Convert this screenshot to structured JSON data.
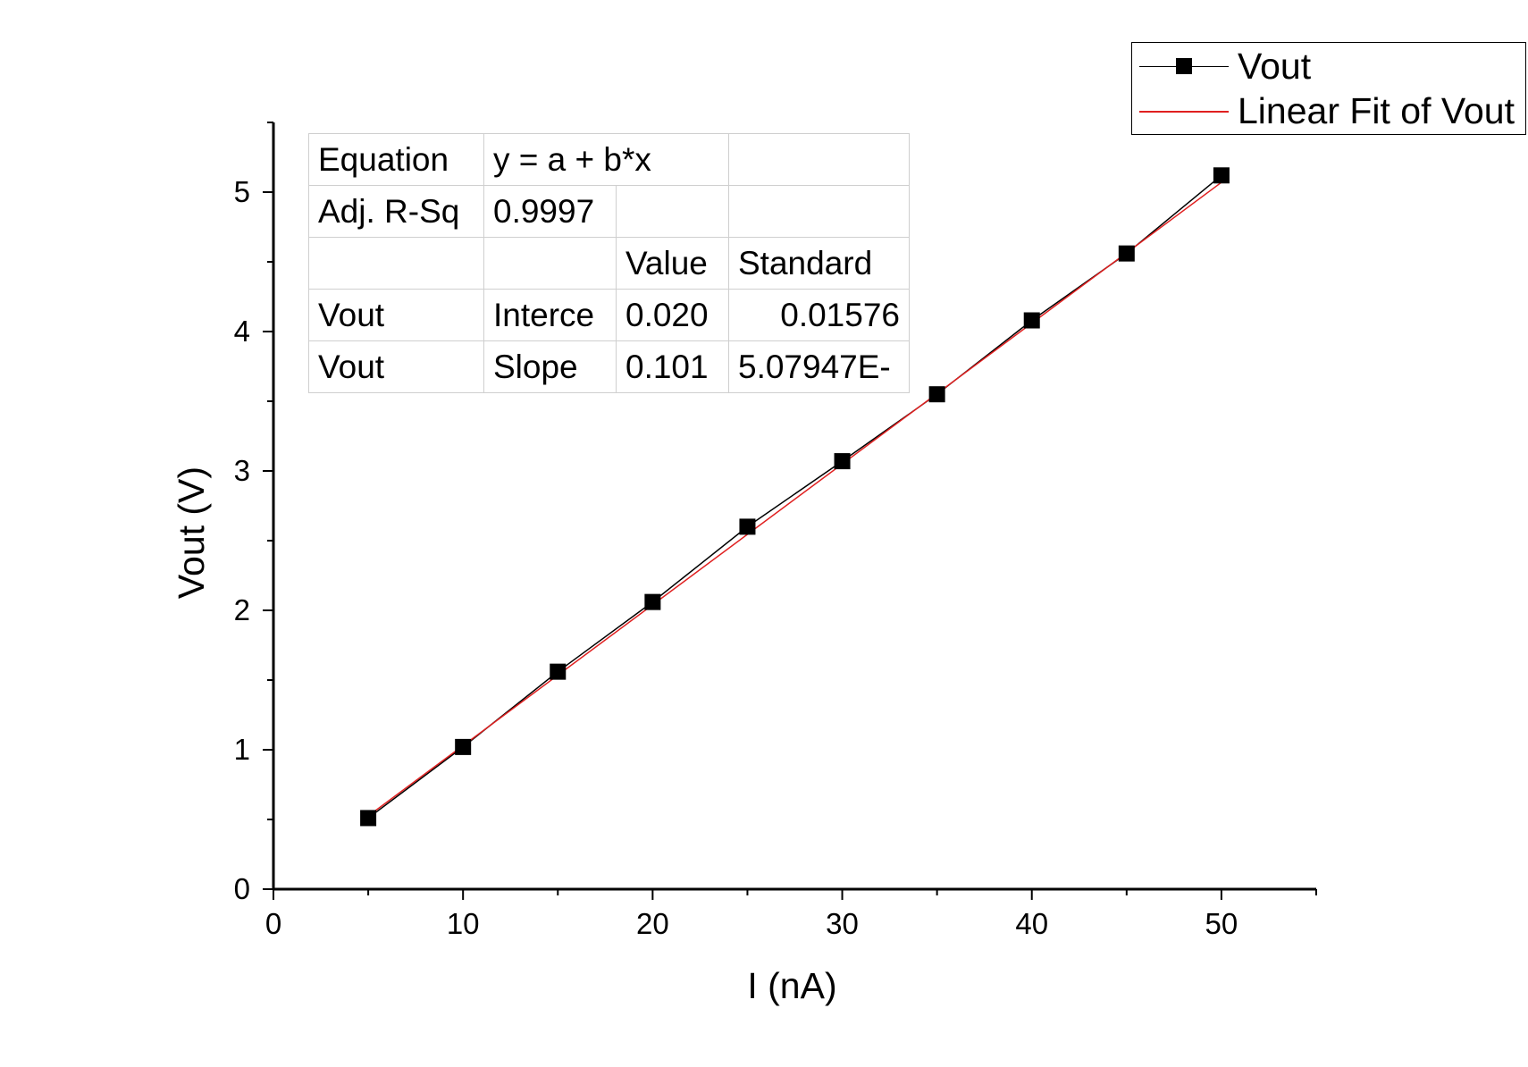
{
  "chart_data": {
    "type": "scatter",
    "xlabel": "I (nA)",
    "ylabel": "Vout (V)",
    "xlim": [
      0,
      55
    ],
    "ylim": [
      0,
      5.5
    ],
    "x_ticks": [
      "0",
      "10",
      "20",
      "30",
      "40",
      "50"
    ],
    "y_ticks": [
      "0",
      "1",
      "2",
      "3",
      "4",
      "5"
    ],
    "grid": false,
    "legend_position": "top-right",
    "series": [
      {
        "name": "Vout",
        "style": "line-with-square-markers",
        "color": "#000000",
        "x": [
          5,
          10,
          15,
          20,
          25,
          30,
          35,
          40,
          45,
          50
        ],
        "y": [
          0.51,
          1.02,
          1.56,
          2.06,
          2.6,
          3.07,
          3.55,
          4.08,
          4.56,
          5.12
        ]
      },
      {
        "name": "Linear Fit of Vout",
        "style": "line",
        "color": "#e02020",
        "intercept": 0.02,
        "slope": 0.101,
        "x": [
          5,
          50
        ]
      }
    ]
  },
  "stats_table": {
    "rows": [
      [
        "Equation",
        "y = a + b*x",
        "",
        ""
      ],
      [
        "Adj. R-Sq",
        "0.9997",
        "",
        ""
      ],
      [
        "",
        "",
        "Value",
        "Standard"
      ],
      [
        "Vout",
        "Interce",
        "0.020",
        "0.01576"
      ],
      [
        "Vout",
        "Slope",
        "0.101",
        "5.07947E-"
      ]
    ]
  }
}
